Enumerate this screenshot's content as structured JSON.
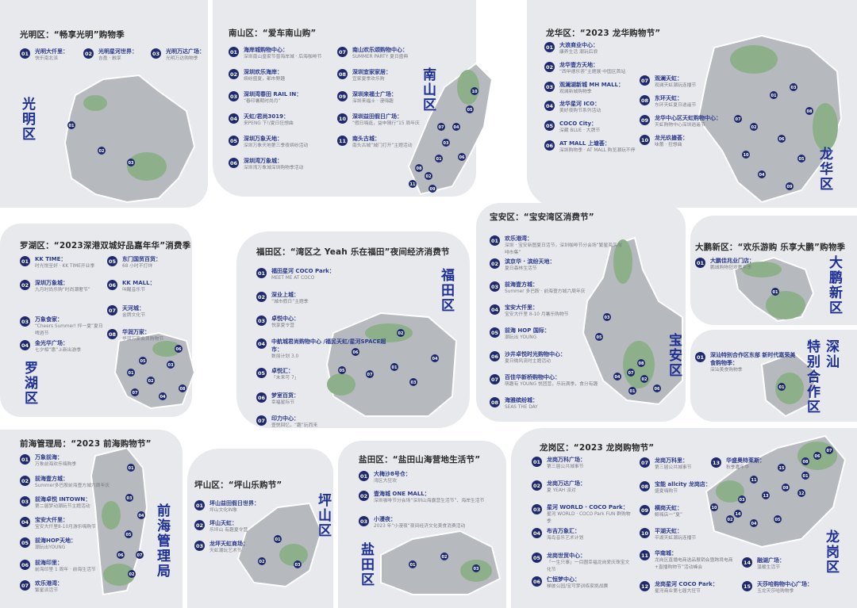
{
  "colors": {
    "panel": "#e8e9ed",
    "road": "#ffffff",
    "map_gray": "#b6b9be",
    "map_green": "#8db08a",
    "badge": "#1f2a6e",
    "district_label": "#1d2f94"
  },
  "districts": [
    {
      "id": "guangming",
      "title": "光明区：“畅享光明”购物季",
      "label": "光明区",
      "items": [
        {
          "num": "01",
          "name": "光明大仟里：",
          "desc": "快乐南北派"
        },
        {
          "num": "02",
          "name": "光明星河世界：",
          "desc": "吉盈 · 融享"
        },
        {
          "num": "03",
          "name": "光明万达广场：",
          "desc": "光明万达购物季"
        }
      ]
    },
    {
      "id": "nanshan",
      "title": "南山区：“爱车南山购”",
      "label": "南山区",
      "items": [
        {
          "num": "01",
          "name": "海岸城购物中心：",
          "desc": "深圳南山皇家节普海岸城 · 后海咖啡节"
        },
        {
          "num": "02",
          "name": "深圳欢乐海岸：",
          "desc": "缤纷盛夏，都市野趣"
        },
        {
          "num": "03",
          "name": "深圳湾春田 RAIL IN：",
          "desc": "“春印暑期时尚月”"
        },
        {
          "num": "04",
          "name": "天虹/君尚3019：",
          "desc": "来PENG 下!/夏日狂想曲"
        },
        {
          "num": "05",
          "name": "深圳万象天地：",
          "desc": "深圳万象天地第三季夜缤纷活动"
        },
        {
          "num": "06",
          "name": "深圳湾万象城：",
          "desc": "深圳湾万象城深圳购物季活动"
        },
        {
          "num": "07",
          "name": "南山欢乐颂购物中心：",
          "desc": "SUMMER PARTY 夏日盛典"
        },
        {
          "num": "08",
          "name": "深圳宜家家居：",
          "desc": "宜家夏季欢乐购"
        },
        {
          "num": "09",
          "name": "深圳来福士广场：",
          "desc": "深圳来福士 · 漫嗨趣"
        },
        {
          "num": "10",
          "name": "深圳益田假日广场：",
          "desc": "“假日嗨逛，益申随行”15 周年庆"
        },
        {
          "num": "11",
          "name": "南头古城：",
          "desc": "南头古城“城门打开”主题活动"
        }
      ]
    },
    {
      "id": "longhua",
      "title": "龙华区：“2023 龙华购物节”",
      "label": "龙华区",
      "items": [
        {
          "num": "01",
          "name": "大浪商业中心：",
          "desc": "康养生活 潮玩后浪"
        },
        {
          "num": "02",
          "name": "龙华壹方天地：",
          "desc": "“西甲德乐荟”主题展·中国区首站"
        },
        {
          "num": "03",
          "name": "观澜湖新城 MH MALL：",
          "desc": "观澜新城购物季"
        },
        {
          "num": "04",
          "name": "龙华星河 ICO：",
          "desc": "美好夜购节系列活动"
        },
        {
          "num": "05",
          "name": "COCO City：",
          "desc": "深藏 BLUE · 大牌节"
        },
        {
          "num": "06",
          "name": "AT MALL 上塘荟：",
          "desc": "深圳购物季 · AT MALL 购览潮玩不停"
        },
        {
          "num": "07",
          "name": "观澜天虹：",
          "desc": "观澜天虹潮玩连播节"
        },
        {
          "num": "08",
          "name": "东环天虹：",
          "desc": "东环天虹夏日逍遥节"
        },
        {
          "num": "09",
          "name": "龙华中心区天虹购物中心：",
          "desc": "天虹购物中心深圳逍遥节"
        },
        {
          "num": "10",
          "name": "龙光玖搪荟：",
          "desc": "味蕾 · 狂想曲"
        }
      ]
    },
    {
      "id": "luohu",
      "title": "罗湖区：“2023深港双城好品嘉年华”消费季",
      "label": "罗湖区",
      "items": [
        {
          "num": "01",
          "name": "KK TIME：",
          "desc": "时光悦至好 · KK TIME开业季"
        },
        {
          "num": "02",
          "name": "深圳万象城：",
          "desc": "九月时尚乐购“时尚潮奢节”"
        },
        {
          "num": "03",
          "name": "万象食家：",
          "desc": "“Cheers Summer! 怦一夏”夏日啤酒节"
        },
        {
          "num": "04",
          "name": "金光华广场：",
          "desc": "七夕相“惠”上新出游季"
        },
        {
          "num": "05",
          "name": "东门国贸百货：",
          "desc": "68 小时不打烊"
        },
        {
          "num": "06",
          "name": "KK MALL：",
          "desc": "叫醒音乐节"
        },
        {
          "num": "07",
          "name": "天河城：",
          "desc": "金牌文化节"
        },
        {
          "num": "08",
          "name": "华润万家：",
          "desc": "华润万家会员购物节"
        }
      ]
    },
    {
      "id": "futian",
      "title": "福田区：“湾区之 Yeah 乐在福田”夜间经济消费节",
      "label": "福田区",
      "items": [
        {
          "num": "01",
          "name": "福田星河 COCO Park：",
          "desc": "MEET ME AT COCO"
        },
        {
          "num": "02",
          "name": "深业上城：",
          "desc": "“城市假日”主题季"
        },
        {
          "num": "03",
          "name": "卓悦中心：",
          "desc": "悦享夏令营"
        },
        {
          "num": "04",
          "name": "中航城君尚购物中心 /福民天虹/星河SPACE超市：",
          "desc": "数丽计划 3.0"
        },
        {
          "num": "05",
          "name": "卓悦汇：",
          "desc": "「未来可 7」"
        },
        {
          "num": "06",
          "name": "梦室百货：",
          "desc": "幸福星际节"
        },
        {
          "num": "07",
          "name": "印力中心：",
          "desc": "壹悦回忆，“趣”玩而来"
        }
      ]
    },
    {
      "id": "baoan",
      "title": "宝安区：“宝安湾区消费节”",
      "label": "宝安区",
      "items": [
        {
          "num": "01",
          "name": "欢乐港湾：",
          "desc": "深圳 · 宝安新图夏日活节，深圳咖啡节分会场“繁星海风咖啡市集”"
        },
        {
          "num": "02",
          "name": "滨京华 · 滨纷天地：",
          "desc": "夏日森林生活节"
        },
        {
          "num": "03",
          "name": "前海壹方城：",
          "desc": "Summer 多巴胺 · 前海壹方城六周年庆"
        },
        {
          "num": "04",
          "name": "宝安大仟里：",
          "desc": "宝安大仟里 8-10 月暑乐购物节"
        },
        {
          "num": "05",
          "name": "前海 HOP 国际：",
          "desc": "潮玩出 YOUNG"
        },
        {
          "num": "06",
          "name": "沙井卓悦时光购物中心：",
          "desc": "夏日微风流时主题活动"
        },
        {
          "num": "07",
          "name": "百佳华新桥购物中心：",
          "desc": "萌趣有 YOUNG 悦团营，乐玩满季，食分有趣"
        },
        {
          "num": "08",
          "name": "海雅缤纷城：",
          "desc": "SEAS THE DAY"
        }
      ]
    },
    {
      "id": "dapeng",
      "title": "大鹏新区：“欢乐游购 乐享大鹏”购物季",
      "label": "大鹏新区",
      "items": [
        {
          "num": "01",
          "name": "大鹏佳兆业门店：",
          "desc": "鹏城购物狂欢嘉年季"
        }
      ]
    },
    {
      "id": "shenshan",
      "title": "",
      "label_a": "深汕",
      "label_b": "特别合作区",
      "items": [
        {
          "num": "01",
          "name": "深汕特别合作区东部 新时代嘉荣美食购物季：",
          "desc": "深汕美食购物季"
        }
      ]
    },
    {
      "id": "qianhai",
      "title": "前海管理局：“2023 前海购物节”",
      "label": "前海管理局",
      "items": [
        {
          "num": "01",
          "name": "万象前海：",
          "desc": "万象前海欢乐嗨购季"
        },
        {
          "num": "02",
          "name": "前海壹方城：",
          "desc": "Summer多巴胺前海壹方城六周年庆"
        },
        {
          "num": "03",
          "name": "前海卓悦 INTOWN：",
          "desc": "第二届梦动潮玩节主题活动"
        },
        {
          "num": "04",
          "name": "宝安大仟里：",
          "desc": "宝安大仟里8-10月游乐嗨购节"
        },
        {
          "num": "05",
          "name": "前海HOP天地：",
          "desc": "潮玩出YOUNG"
        },
        {
          "num": "06",
          "name": "前海印里：",
          "desc": "前海印里 1 周年 · 前海生活节"
        },
        {
          "num": "07",
          "name": "欢乐港湾：",
          "desc": "繁星派活节"
        }
      ]
    },
    {
      "id": "pingshan",
      "title": "坪山区：“坪山乐购节”",
      "label": "坪山区",
      "items": [
        {
          "num": "01",
          "name": "坪山益田假日世界：",
          "desc": "坪山文化IN象"
        },
        {
          "num": "02",
          "name": "坪山天虹：",
          "desc": "乐坪山 有趣夏令营"
        },
        {
          "num": "03",
          "name": "龙坪天虹商场：",
          "desc": "天虹潮玩艺术节"
        }
      ]
    },
    {
      "id": "yantian",
      "title": "盐田区：“盐田山海营地生活节”",
      "label": "盐田区",
      "items": [
        {
          "num": "01",
          "name": "大梅沙8号仓：",
          "desc": "湾区大狂欢"
        },
        {
          "num": "02",
          "name": "壹海城 ONE MALL：",
          "desc": "深圳咖啡节分会场“深圳山海露营生活节”、海岸生活节"
        },
        {
          "num": "03",
          "name": "小漫夜：",
          "desc": "2023 年“小漫夜”夜间经济文化美食消费活动"
        }
      ]
    },
    {
      "id": "longgang",
      "title": "龙岗区：“2023 龙岗购物节”",
      "label": "龙岗区",
      "items": [
        {
          "num": "01",
          "name": "龙岗万科广场：",
          "desc": "第三届公共城事节"
        },
        {
          "num": "02",
          "name": "龙岗万达广场：",
          "desc": "夏 YEAH 派对"
        },
        {
          "num": "03",
          "name": "星河 WORLD · COCO Park：",
          "desc": "星河 WORLD · COCO Park FUN 群购物季"
        },
        {
          "num": "04",
          "name": "布吉万象汇：",
          "desc": "海岛音乐艺术计划"
        },
        {
          "num": "05",
          "name": "龙岗世贸中心：",
          "desc": "「一生只事」一目圆幸福龙岗爱庆珠宝文化节"
        },
        {
          "num": "06",
          "name": "仁恒梦中心：",
          "desc": "梯彼公园/宝可梦训练家挑战赛"
        },
        {
          "num": "07",
          "name": "龙岗万科里：",
          "desc": "第三届公共城事节"
        },
        {
          "num": "08",
          "name": "宝能 allcity 龙岗店：",
          "desc": "盛夏嗨购节"
        },
        {
          "num": "09",
          "name": "横岗天虹：",
          "desc": "鲸嗨店一“夏”"
        },
        {
          "num": "10",
          "name": "平湖天虹：",
          "desc": "平湖天虹潮玩连播节"
        },
        {
          "num": "11",
          "name": "华南城：",
          "desc": "龙岗区直播电商选品展销会暨跨境电商+直播购物节”活动峰会"
        },
        {
          "num": "12",
          "name": "龙岗星河 COCO Park：",
          "desc": "星河商业第七届大狂节"
        },
        {
          "num": "13",
          "name": "华盛奥特莱斯：",
          "desc": "秋季嘉年华"
        },
        {
          "num": "14",
          "name": "融湖广场：",
          "desc": "温暖生活节"
        },
        {
          "num": "15",
          "name": "天莎哈购物中心广场：",
          "desc": "玉龙天莎哈购物季"
        }
      ]
    }
  ]
}
